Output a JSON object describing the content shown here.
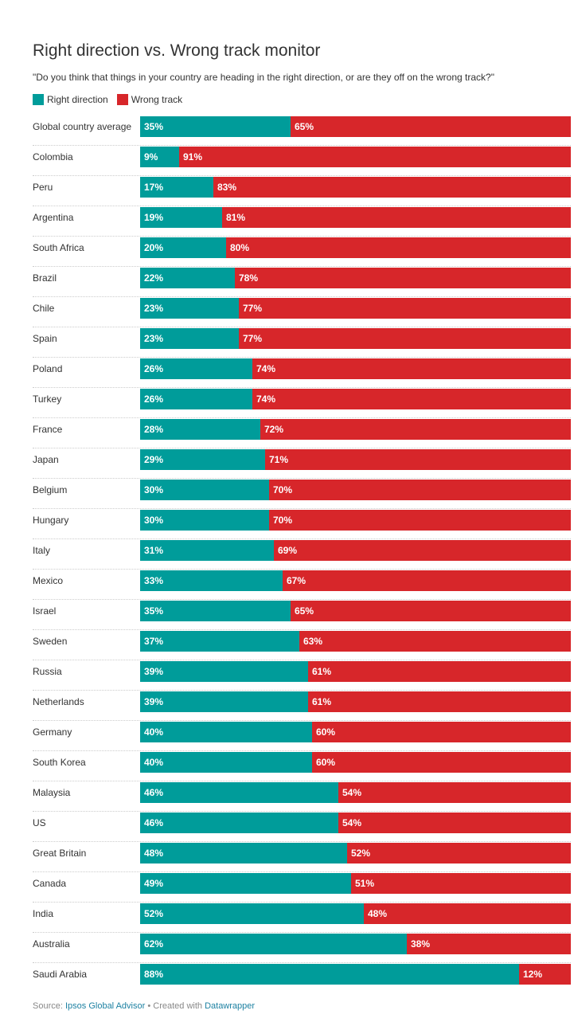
{
  "title": "Right direction vs. Wrong track monitor",
  "subtitle": "\"Do you think that things in your country are heading in the right direction, or are they off on the wrong track?\"",
  "legend": {
    "right": "Right direction",
    "wrong": "Wrong track"
  },
  "colors": {
    "right": "#009c9a",
    "wrong": "#d7262a"
  },
  "footer": {
    "source_label": "Source:",
    "source_link": "Ipsos Global Advisor",
    "separator": "•",
    "created_label": "Created with",
    "created_link": "Datawrapper"
  },
  "chart_data": {
    "type": "bar",
    "orientation": "horizontal",
    "stacked": true,
    "legend_position": "top-left",
    "categories": [
      "Global country average",
      "Colombia",
      "Peru",
      "Argentina",
      "South Africa",
      "Brazil",
      "Chile",
      "Spain",
      "Poland",
      "Turkey",
      "France",
      "Japan",
      "Belgium",
      "Hungary",
      "Italy",
      "Mexico",
      "Israel",
      "Sweden",
      "Russia",
      "Netherlands",
      "Germany",
      "South Korea",
      "Malaysia",
      "US",
      "Great Britain",
      "Canada",
      "India",
      "Australia",
      "Saudi Arabia"
    ],
    "series": [
      {
        "name": "Right direction",
        "values": [
          35,
          9,
          17,
          19,
          20,
          22,
          23,
          23,
          26,
          26,
          28,
          29,
          30,
          30,
          31,
          33,
          35,
          37,
          39,
          39,
          40,
          40,
          46,
          46,
          48,
          49,
          52,
          62,
          88
        ]
      },
      {
        "name": "Wrong track",
        "values": [
          65,
          91,
          83,
          81,
          80,
          78,
          77,
          77,
          74,
          74,
          72,
          71,
          70,
          70,
          69,
          67,
          65,
          63,
          61,
          61,
          60,
          60,
          54,
          54,
          52,
          51,
          48,
          38,
          12
        ]
      }
    ],
    "xlim": [
      0,
      100
    ],
    "value_suffix": "%"
  }
}
